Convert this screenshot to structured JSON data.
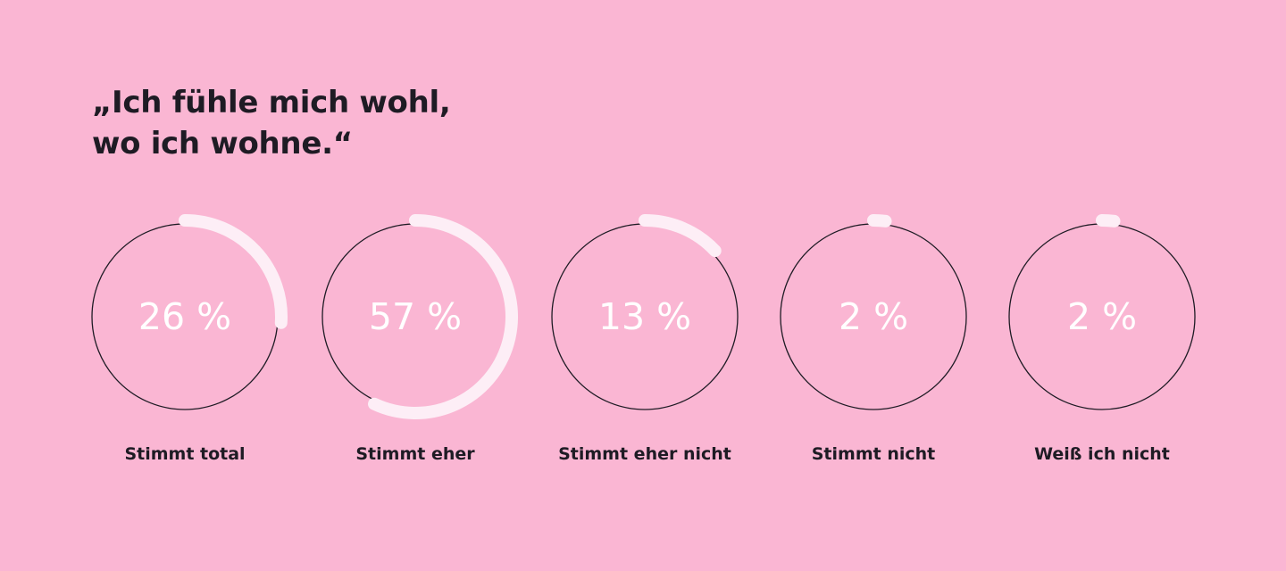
{
  "title_lines": [
    "„Ich fühle mich wohl,",
    "wo ich wohne.“"
  ],
  "colors": {
    "background": "#fab6d3",
    "ring": "#1e1b24",
    "arc": "#fdeef6",
    "value_text": "#ffffff",
    "label_text": "#1e1b24"
  },
  "chart_data": {
    "type": "pie",
    "title": "„Ich fühle mich wohl, wo ich wohne.“",
    "categories": [
      "Stimmt total",
      "Stimmt eher",
      "Stimmt eher nicht",
      "Stimmt nicht",
      "Weiß ich nicht"
    ],
    "values": [
      26,
      57,
      13,
      2,
      2
    ],
    "value_labels": [
      "26 %",
      "57 %",
      "13 %",
      "2 %",
      "2 %"
    ],
    "unit": "%"
  }
}
